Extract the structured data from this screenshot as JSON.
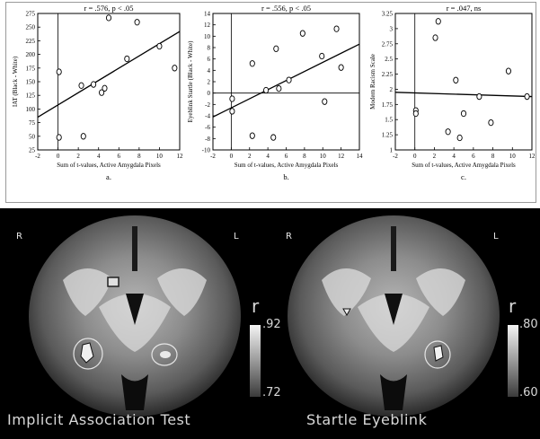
{
  "chart_data": [
    {
      "type": "scatter",
      "title": "r = .576, p < .05",
      "xlabel": "Sum of t-values, Active Amygdala Pixels",
      "ylabel": "IAT (Black - White)",
      "panel_label": "a.",
      "xlim": [
        -2,
        12
      ],
      "ylim": [
        25,
        275
      ],
      "xticks": [
        -2,
        0,
        2,
        4,
        6,
        8,
        10,
        12
      ],
      "yticks": [
        25,
        50,
        75,
        100,
        125,
        150,
        175,
        200,
        225,
        250,
        275
      ],
      "points": [
        {
          "x": 0.1,
          "y": 168
        },
        {
          "x": 0.1,
          "y": 48
        },
        {
          "x": 2.3,
          "y": 143
        },
        {
          "x": 2.5,
          "y": 50
        },
        {
          "x": 3.5,
          "y": 145
        },
        {
          "x": 4.3,
          "y": 130
        },
        {
          "x": 4.6,
          "y": 138
        },
        {
          "x": 5.0,
          "y": 267
        },
        {
          "x": 6.8,
          "y": 192
        },
        {
          "x": 7.8,
          "y": 259
        },
        {
          "x": 10.0,
          "y": 215
        },
        {
          "x": 11.5,
          "y": 175
        }
      ],
      "fit_line": [
        {
          "x": -2,
          "y": 85
        },
        {
          "x": 12,
          "y": 242
        }
      ],
      "ref_lines": {
        "x": 0,
        "y": null
      }
    },
    {
      "type": "scatter",
      "title": "r = .556, p < .05",
      "xlabel": "Sum of t-values, Active Amygdala Pixels",
      "ylabel": "Eyeblink Startle (Black - White)",
      "panel_label": "b.",
      "xlim": [
        -2,
        14
      ],
      "ylim": [
        -10,
        14
      ],
      "xticks": [
        -2,
        0,
        2,
        4,
        6,
        8,
        10,
        12,
        14
      ],
      "yticks": [
        -10,
        -8,
        -6,
        -4,
        -2,
        0,
        2,
        4,
        6,
        8,
        10,
        12,
        14
      ],
      "points": [
        {
          "x": 0.1,
          "y": -1.0
        },
        {
          "x": 0.1,
          "y": -3.2
        },
        {
          "x": 2.3,
          "y": 5.2
        },
        {
          "x": 2.3,
          "y": -7.5
        },
        {
          "x": 3.8,
          "y": 0.5
        },
        {
          "x": 4.6,
          "y": -7.8
        },
        {
          "x": 4.9,
          "y": 7.8
        },
        {
          "x": 5.2,
          "y": 0.8
        },
        {
          "x": 6.3,
          "y": 2.3
        },
        {
          "x": 7.8,
          "y": 10.5
        },
        {
          "x": 9.9,
          "y": 6.5
        },
        {
          "x": 10.2,
          "y": -1.5
        },
        {
          "x": 11.5,
          "y": 11.3
        },
        {
          "x": 12.0,
          "y": 4.5
        }
      ],
      "fit_line": [
        {
          "x": -2,
          "y": -4.2
        },
        {
          "x": 14,
          "y": 8.6
        }
      ],
      "ref_lines": {
        "x": 0,
        "y": 0
      }
    },
    {
      "type": "scatter",
      "title": "r = .047, ns",
      "xlabel": "Sum of t-values, Active Amygdala Pixels",
      "ylabel": "Modern Racism Scale",
      "panel_label": "c.",
      "xlim": [
        -2,
        12
      ],
      "ylim": [
        1,
        3.25
      ],
      "xticks": [
        -2,
        0,
        2,
        4,
        6,
        8,
        10,
        12
      ],
      "yticks": [
        1,
        1.25,
        1.5,
        1.75,
        2,
        2.25,
        2.5,
        2.75,
        3,
        3.25
      ],
      "points": [
        {
          "x": 0.1,
          "y": 1.65
        },
        {
          "x": 0.1,
          "y": 1.6
        },
        {
          "x": 2.1,
          "y": 2.85
        },
        {
          "x": 2.4,
          "y": 3.12
        },
        {
          "x": 3.4,
          "y": 1.3
        },
        {
          "x": 4.2,
          "y": 2.15
        },
        {
          "x": 4.6,
          "y": 1.2
        },
        {
          "x": 5.0,
          "y": 1.6
        },
        {
          "x": 6.6,
          "y": 1.88
        },
        {
          "x": 7.8,
          "y": 1.45
        },
        {
          "x": 9.6,
          "y": 2.3
        },
        {
          "x": 11.5,
          "y": 1.88
        }
      ],
      "fit_line": [
        {
          "x": -2,
          "y": 1.95
        },
        {
          "x": 12,
          "y": 1.88
        }
      ],
      "ref_lines": {
        "x": 0,
        "y": null
      }
    }
  ],
  "brain_panels": [
    {
      "caption": "Implicit Association Test",
      "left_label": "R",
      "right_label": "L",
      "colorbar_label": "r",
      "colorbar_max": ".92",
      "colorbar_min": ".72"
    },
    {
      "caption": "Startle Eyeblink",
      "left_label": "R",
      "right_label": "L",
      "colorbar_label": "r",
      "colorbar_max": ".80",
      "colorbar_min": ".60"
    }
  ]
}
